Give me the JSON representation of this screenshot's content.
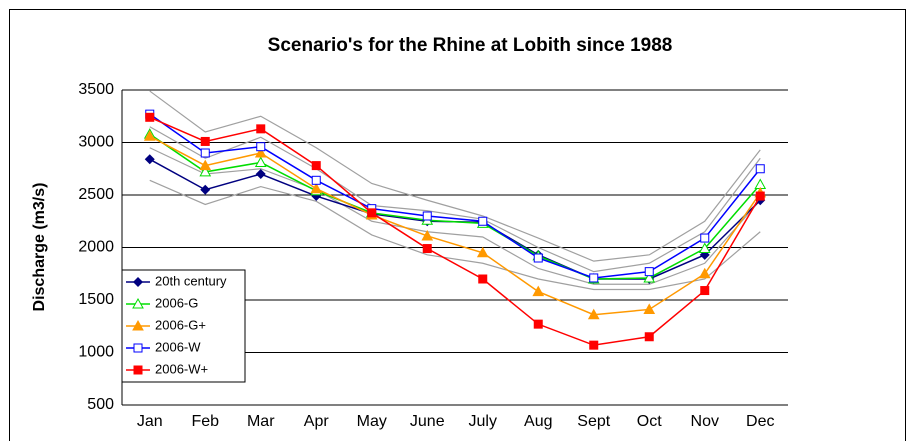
{
  "chart_data": {
    "type": "line",
    "title": "Scenario's for the Rhine at Lobith since 1988",
    "y_label": "Discharge (m3/s)",
    "categories": [
      "Jan",
      "Feb",
      "Mar",
      "Apr",
      "May",
      "June",
      "July",
      "Aug",
      "Sept",
      "Oct",
      "Nov",
      "Dec"
    ],
    "ylim": [
      500,
      3500
    ],
    "yticks": [
      500,
      1000,
      1500,
      2000,
      2500,
      3000,
      3500
    ],
    "grid": true,
    "legend": "lower left",
    "series": [
      {
        "color": "#a0a0a0",
        "values": [
          3490,
          3100,
          3250,
          2950,
          2610,
          2450,
          2300,
          2090,
          1870,
          1930,
          2250,
          2930
        ]
      },
      {
        "color": "#a0a0a0",
        "values": [
          3150,
          2850,
          3050,
          2750,
          2400,
          2350,
          2270,
          2000,
          1770,
          1850,
          2150,
          2850
        ]
      },
      {
        "color": "#a0a0a0",
        "values": [
          2950,
          2700,
          2750,
          2550,
          2250,
          2150,
          2100,
          1800,
          1650,
          1650,
          1850,
          2450
        ]
      },
      {
        "color": "#a0a0a0",
        "values": [
          2640,
          2410,
          2580,
          2440,
          2120,
          1930,
          1850,
          1700,
          1600,
          1600,
          1700,
          2150
        ]
      },
      {
        "name": "20th century",
        "color": "#000080",
        "marker": "diamond",
        "values": [
          2840,
          2550,
          2700,
          2490,
          2320,
          2250,
          2240,
          1930,
          1700,
          1700,
          1930,
          2450
        ]
      },
      {
        "name": "2006-G",
        "color": "#00dd00",
        "marker": "triangle-open",
        "values": [
          3080,
          2720,
          2810,
          2540,
          2330,
          2260,
          2230,
          1920,
          1700,
          1710,
          1990,
          2600
        ]
      },
      {
        "name": "2006-G+",
        "color": "#ff9900",
        "marker": "triangle",
        "values": [
          3060,
          2780,
          2900,
          2560,
          2310,
          2110,
          1950,
          1580,
          1360,
          1410,
          1750,
          2520
        ]
      },
      {
        "name": "2006-W",
        "color": "#0000ff",
        "marker": "square-open",
        "values": [
          3270,
          2900,
          2960,
          2640,
          2370,
          2300,
          2250,
          1900,
          1710,
          1770,
          2090,
          2750
        ]
      },
      {
        "name": "2006-W+",
        "color": "#ff0000",
        "marker": "square",
        "values": [
          3240,
          3010,
          3130,
          2780,
          2330,
          1990,
          1700,
          1270,
          1070,
          1150,
          1590,
          2490
        ]
      }
    ]
  }
}
